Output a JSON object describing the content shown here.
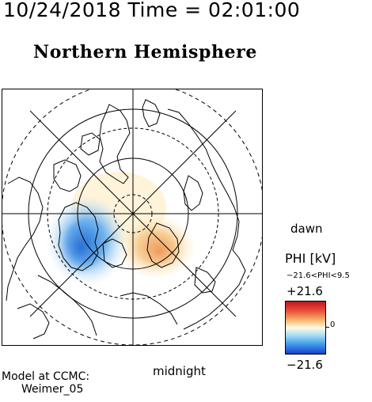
{
  "header": {
    "timestamp": "10/24/2018 Time = 02:01:00",
    "title": "Northern Hemisphere"
  },
  "map": {
    "dawn_label": "dawn",
    "midnight_label": "midnight",
    "projection": "polar stereographic, north pole",
    "graticule": "latitude circles and meridians every 45°"
  },
  "legend": {
    "title": "PHI [kV]",
    "range_text": "−21.6<PHI<9.5",
    "max_label": "+21.6",
    "min_label": "−21.6",
    "zero_label": "0",
    "colors": {
      "positive": "#c0161c",
      "zero": "#fffbe0",
      "negative": "#1c3fd0"
    }
  },
  "footer": {
    "model_line1": "Model at CCMC:",
    "model_line2": "Weimer_05"
  }
}
